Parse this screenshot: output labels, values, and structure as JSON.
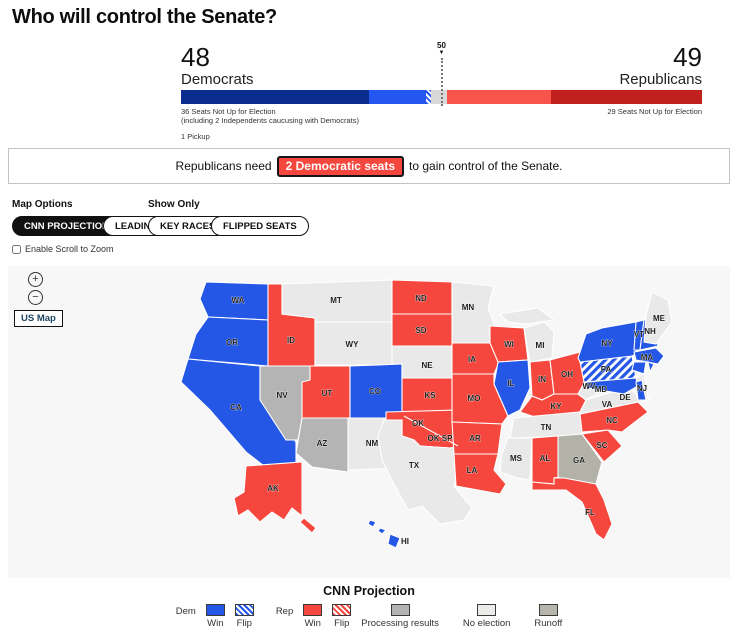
{
  "page": {
    "title": "Who will control the Senate?"
  },
  "balance": {
    "dem": {
      "count": "48",
      "label": "Democrats",
      "not_up_label": "36 Seats Not Up for Election",
      "independents_note": "(including 2 Independents caucusing with Democrats)",
      "pickup_label": "1 Pickup"
    },
    "rep": {
      "count": "49",
      "label": "Republicans",
      "not_up_label": "29 Seats Not Up for Election"
    },
    "majority_marker": "50",
    "marker_arrow": "▼",
    "seats": {
      "total": 100,
      "dem_not_up": 36,
      "dem_win": 11,
      "dem_flip": 1,
      "undecided": 3,
      "rep_win": 20,
      "rep_not_up": 29
    }
  },
  "banner": {
    "prefix": "Republicans need",
    "highlight": "2 Democratic seats",
    "suffix": "to gain control of the Senate."
  },
  "controls": {
    "map_options_label": "Map Options",
    "show_only_label": "Show Only",
    "projection_button": "CNN PROJECTION",
    "show_only_buttons": [
      "LEADING",
      "KEY RACES",
      "FLIPPED SEATS"
    ],
    "scroll_zoom_label": "Enable Scroll to Zoom",
    "zoom_in": "+",
    "zoom_out": "−",
    "us_map_button": "US Map"
  },
  "colors": {
    "dem_win": "#2457e5",
    "dem_not_up": "#0b2d8f",
    "rep_win": "#f5473d",
    "rep_not_up": "#c0211d",
    "processing": "#b4b4b4",
    "no_election": "#e9e9e9",
    "runoff": "#b6b6ac",
    "badge_red": "#f5473d"
  },
  "map": {
    "states": [
      {
        "id": "WA",
        "label": "WA",
        "status": "dem-win"
      },
      {
        "id": "OR",
        "label": "OR",
        "status": "dem-win"
      },
      {
        "id": "CA",
        "label": "CA",
        "status": "dem-win"
      },
      {
        "id": "ID",
        "label": "ID",
        "status": "rep-win"
      },
      {
        "id": "NV",
        "label": "NV",
        "status": "processing"
      },
      {
        "id": "UT",
        "label": "UT",
        "status": "rep-win"
      },
      {
        "id": "AZ",
        "label": "AZ",
        "status": "processing"
      },
      {
        "id": "MT",
        "label": "MT",
        "status": "no-election"
      },
      {
        "id": "WY",
        "label": "WY",
        "status": "no-election"
      },
      {
        "id": "CO",
        "label": "CO",
        "status": "dem-win"
      },
      {
        "id": "NM",
        "label": "NM",
        "status": "no-election"
      },
      {
        "id": "ND",
        "label": "ND",
        "status": "rep-win"
      },
      {
        "id": "SD",
        "label": "SD",
        "status": "rep-win"
      },
      {
        "id": "NE",
        "label": "NE",
        "status": "no-election"
      },
      {
        "id": "KS",
        "label": "KS",
        "status": "rep-win"
      },
      {
        "id": "OK",
        "label": "OK",
        "status": "rep-win"
      },
      {
        "id": "OK_SP",
        "label": "OK SP",
        "status": "rep-win"
      },
      {
        "id": "TX",
        "label": "TX",
        "status": "no-election"
      },
      {
        "id": "MN",
        "label": "MN",
        "status": "no-election"
      },
      {
        "id": "IA",
        "label": "IA",
        "status": "rep-win"
      },
      {
        "id": "MO",
        "label": "MO",
        "status": "rep-win"
      },
      {
        "id": "AR",
        "label": "AR",
        "status": "rep-win"
      },
      {
        "id": "LA",
        "label": "LA",
        "status": "rep-win"
      },
      {
        "id": "WI",
        "label": "WI",
        "status": "rep-win"
      },
      {
        "id": "IL",
        "label": "IL",
        "status": "dem-win"
      },
      {
        "id": "MI",
        "label": "MI",
        "status": "no-election"
      },
      {
        "id": "MI_UP",
        "label": "",
        "status": "no-election"
      },
      {
        "id": "IN",
        "label": "IN",
        "status": "rep-win"
      },
      {
        "id": "OH",
        "label": "OH",
        "status": "rep-win"
      },
      {
        "id": "KY",
        "label": "KY",
        "status": "rep-win"
      },
      {
        "id": "TN",
        "label": "TN",
        "status": "no-election"
      },
      {
        "id": "MS",
        "label": "MS",
        "status": "no-election"
      },
      {
        "id": "AL",
        "label": "AL",
        "status": "rep-win"
      },
      {
        "id": "GA",
        "label": "GA",
        "status": "runoff"
      },
      {
        "id": "FL",
        "label": "FL",
        "status": "rep-win"
      },
      {
        "id": "SC",
        "label": "SC",
        "status": "rep-win"
      },
      {
        "id": "NC",
        "label": "NC",
        "status": "rep-win"
      },
      {
        "id": "VA",
        "label": "VA",
        "status": "no-election"
      },
      {
        "id": "WV",
        "label": "WV",
        "status": "no-election"
      },
      {
        "id": "PA",
        "label": "PA",
        "status": "dem-flip"
      },
      {
        "id": "NY",
        "label": "NY",
        "status": "dem-win"
      },
      {
        "id": "VT",
        "label": "VT",
        "status": "dem-win"
      },
      {
        "id": "NH",
        "label": "NH",
        "status": "dem-win"
      },
      {
        "id": "ME",
        "label": "ME",
        "status": "no-election"
      },
      {
        "id": "MA",
        "label": "MA",
        "status": "dem-win"
      },
      {
        "id": "CT",
        "label": "",
        "status": "dem-win"
      },
      {
        "id": "RI",
        "label": "",
        "status": "dem-win"
      },
      {
        "id": "NJ",
        "label": "NJ",
        "status": "no-election"
      },
      {
        "id": "MD",
        "label": "MD",
        "status": "dem-win"
      },
      {
        "id": "DE",
        "label": "DE",
        "status": "dem-win"
      },
      {
        "id": "AK",
        "label": "AK",
        "status": "rep-win"
      },
      {
        "id": "AK2",
        "label": "",
        "status": "rep-win"
      },
      {
        "id": "HI",
        "label": "HI",
        "status": "dem-win"
      },
      {
        "id": "HI2",
        "label": "",
        "status": "dem-win"
      },
      {
        "id": "HI3",
        "label": "",
        "status": "dem-win"
      }
    ]
  },
  "legend": {
    "title": "CNN Projection",
    "dem_label": "Dem",
    "rep_label": "Rep",
    "win_label": "Win",
    "flip_label": "Flip",
    "processing_label": "Processing results",
    "no_election_label": "No election",
    "runoff_label": "Runoff"
  }
}
